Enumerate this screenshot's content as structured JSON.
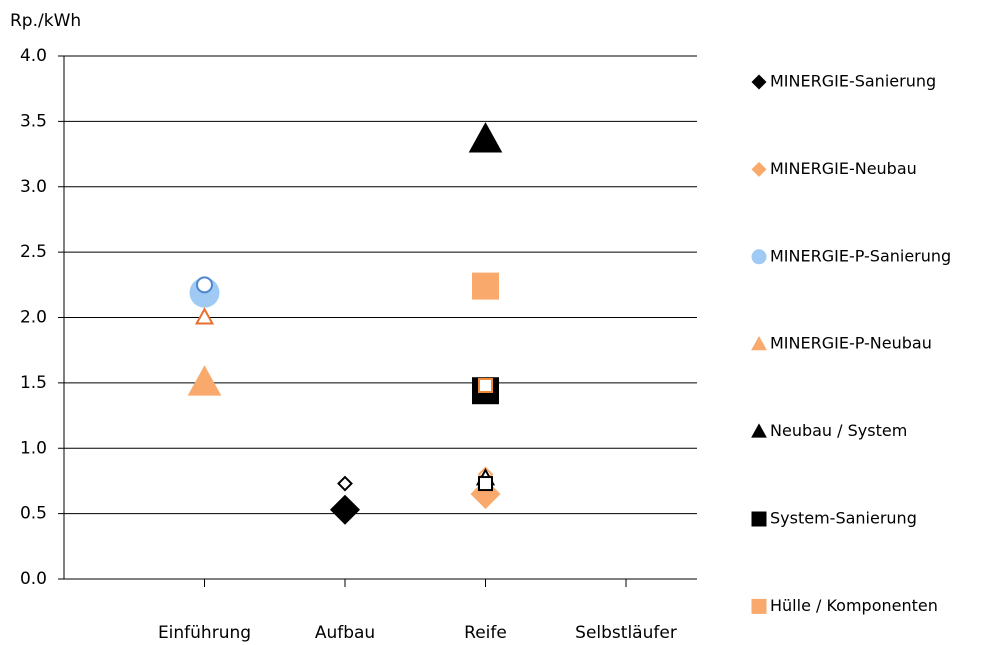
{
  "chart_data": {
    "type": "scatter",
    "y_label": "Rp./kWh",
    "categories": [
      "Einführung",
      "Aufbau",
      "Reife",
      "Selbstläufer"
    ],
    "ylim": [
      0,
      4
    ],
    "yticks": [
      {
        "value": 0,
        "label": "0.0"
      },
      {
        "value": 0.5,
        "label": "0.5"
      },
      {
        "value": 1,
        "label": "1.0"
      },
      {
        "value": 1.5,
        "label": "1.5"
      },
      {
        "value": 2,
        "label": "2.0"
      },
      {
        "value": 2.5,
        "label": "2.5"
      },
      {
        "value": 3,
        "label": "3.0"
      },
      {
        "value": 3.5,
        "label": "3.5"
      },
      {
        "value": 4,
        "label": "4.0"
      }
    ],
    "grid": true,
    "legend": "right",
    "series": [
      {
        "name": "MINERGIE-Sanierung",
        "marker": "diamond",
        "color": "#000000",
        "alt_color": "#000000",
        "values": [
          null,
          0.53,
          null,
          null
        ],
        "alt_values": [
          null,
          0.73,
          null,
          null
        ]
      },
      {
        "name": "MINERGIE-Neubau",
        "marker": "diamond",
        "color": "#f9a96b",
        "alt_color": "#f9a96b",
        "values": [
          null,
          null,
          0.65,
          null
        ],
        "alt_values": [
          null,
          null,
          0.8,
          null
        ]
      },
      {
        "name": "MINERGIE-P-Sanierung",
        "marker": "circle",
        "color": "#9fcaf3",
        "alt_color": "#4f86d0",
        "values": [
          2.19,
          null,
          null,
          null
        ],
        "alt_values": [
          2.25,
          null,
          null,
          null
        ]
      },
      {
        "name": "MINERGIE-P-Neubau",
        "marker": "triangle",
        "color": "#f9a96b",
        "alt_color": "#e8702f",
        "values": [
          1.5,
          null,
          null,
          null
        ],
        "alt_values": [
          2.0,
          null,
          null,
          null
        ]
      },
      {
        "name": "Neubau / System",
        "marker": "triangle",
        "color": "#000000",
        "alt_color": "#000000",
        "values": [
          null,
          null,
          3.36,
          null
        ],
        "alt_values": [
          null,
          null,
          0.77,
          null
        ]
      },
      {
        "name": "System-Sanierung",
        "marker": "square",
        "color": "#000000",
        "alt_color": "#000000",
        "values": [
          null,
          null,
          1.44,
          null
        ],
        "alt_values": [
          null,
          null,
          0.73,
          null
        ]
      },
      {
        "name": "Hülle / Komponenten",
        "marker": "square",
        "color": "#f9a96b",
        "alt_color": "#f08a3a",
        "values": [
          null,
          null,
          2.24,
          null
        ],
        "alt_values": [
          null,
          null,
          1.48,
          null
        ]
      }
    ]
  }
}
